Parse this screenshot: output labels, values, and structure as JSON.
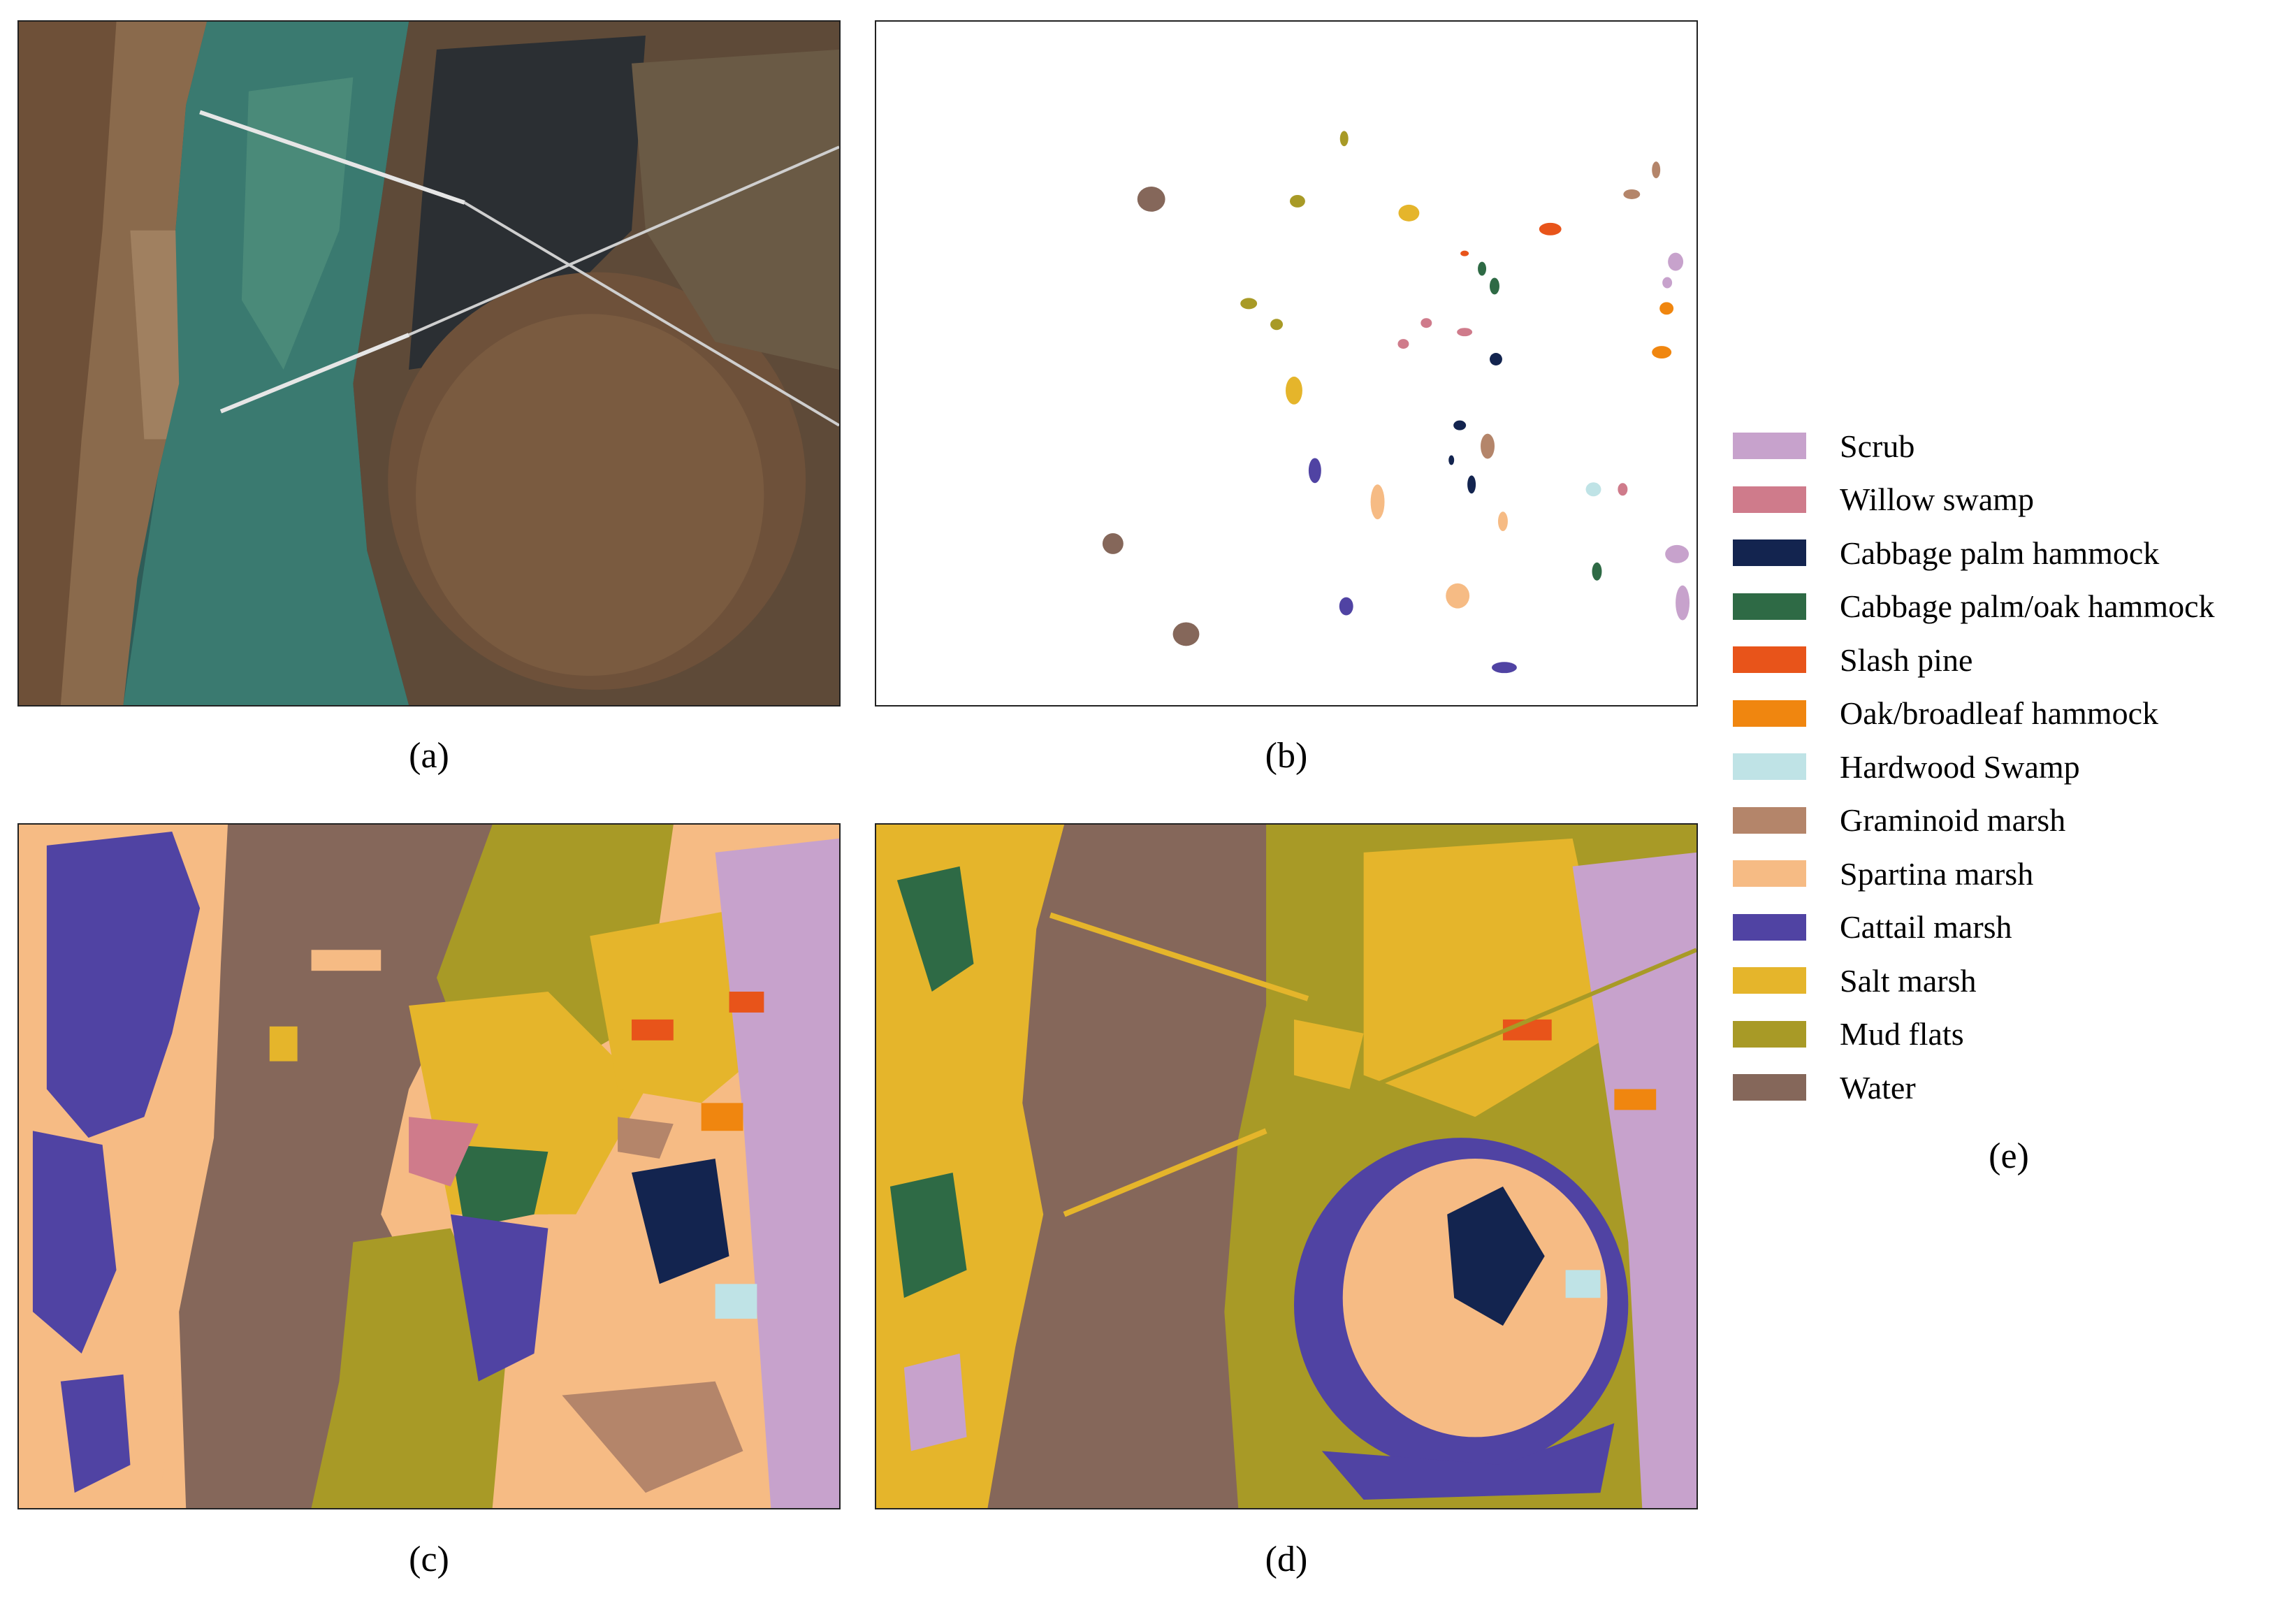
{
  "captions": {
    "a": "(a)",
    "b": "(b)",
    "c": "(c)",
    "d": "(d)",
    "e": "(e)"
  },
  "legend": [
    {
      "label": "Scrub",
      "color": "#c7a2cc"
    },
    {
      "label": "Willow swamp",
      "color": "#cf7b8b"
    },
    {
      "label": "Cabbage palm hammock",
      "color": "#13244f"
    },
    {
      "label": "Cabbage palm/oak hammock",
      "color": "#2e6a45"
    },
    {
      "label": "Slash pine",
      "color": "#e8541a"
    },
    {
      "label": "Oak/broadleaf hammock",
      "color": "#f0860f"
    },
    {
      "label": "Hardwood Swamp",
      "color": "#bfe3e6"
    },
    {
      "label": "Graminoid marsh",
      "color": "#b4856a"
    },
    {
      "label": "Spartina marsh",
      "color": "#f6bb84"
    },
    {
      "label": "Cattail marsh",
      "color": "#5043a3"
    },
    {
      "label": "Salt marsh",
      "color": "#e5b52b"
    },
    {
      "label": "Mud flats",
      "color": "#a89a26"
    },
    {
      "label": "Water",
      "color": "#85675a"
    }
  ]
}
